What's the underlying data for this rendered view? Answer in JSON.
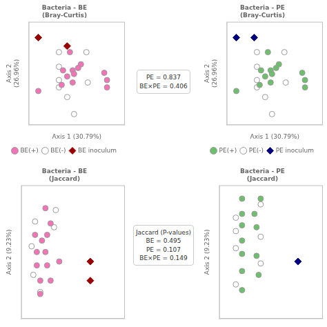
{
  "chart_data": [
    {
      "type": "scatter",
      "title": "Bacteria - BE\n(Bray-Curtis)",
      "xlabel": "Axis 1 (30.79%)",
      "ylabel": "Axis 2\n(26.96%)",
      "annotations": [
        "PE = 0.837\nBE×PE = 0.406"
      ],
      "xlim": [
        0,
        0.7
      ],
      "ylim": [
        0.15,
        1.0
      ],
      "tick_labels": false,
      "grid": false,
      "legend": "bottom",
      "series": [
        {
          "name": "BE(+)",
          "color": "#F472B6",
          "marker": "circle",
          "x": [
            0.3,
            0.38,
            0.25,
            0.32,
            0.36,
            0.28,
            0.33,
            0.24,
            0.32,
            0.07,
            0.55,
            0.57,
            0.57
          ],
          "values": [
            0.75,
            0.65,
            0.6,
            0.6,
            0.62,
            0.55,
            0.57,
            0.48,
            0.5,
            0.43,
            0.58,
            0.52,
            0.46
          ]
        },
        {
          "name": "BE(-)",
          "color": "#ffffff",
          "marker": "circle",
          "x": [
            0.22,
            0.42,
            0.22,
            0.22,
            0.22,
            0.43,
            0.28,
            0.33
          ],
          "values": [
            0.75,
            0.75,
            0.63,
            0.52,
            0.46,
            0.5,
            0.38,
            0.24
          ]
        },
        {
          "name": "BE inoculum",
          "color": "#990000",
          "marker": "diamond",
          "x": [
            0.07,
            0.28
          ],
          "values": [
            0.87,
            0.8
          ]
        }
      ]
    },
    {
      "type": "scatter",
      "title": "Bacteria - PE\n(Bray-Curtis)",
      "xlabel": "Axis 1 (30.79%)",
      "ylabel": "Axis 2\n(26.96%)",
      "xlim": [
        0,
        0.7
      ],
      "ylim": [
        0.15,
        1.0
      ],
      "tick_labels": false,
      "grid": false,
      "legend": "bottom",
      "series": [
        {
          "name": "PE(+)",
          "color": "#6DBF6D",
          "marker": "circle",
          "x": [
            0.3,
            0.38,
            0.25,
            0.32,
            0.36,
            0.28,
            0.33,
            0.24,
            0.32,
            0.07,
            0.55,
            0.57,
            0.57
          ],
          "values": [
            0.75,
            0.65,
            0.6,
            0.6,
            0.62,
            0.55,
            0.57,
            0.48,
            0.5,
            0.43,
            0.58,
            0.52,
            0.46
          ]
        },
        {
          "name": "PE(-)",
          "color": "#ffffff",
          "marker": "circle",
          "x": [
            0.22,
            0.42,
            0.22,
            0.22,
            0.22,
            0.43,
            0.28,
            0.33
          ],
          "values": [
            0.75,
            0.75,
            0.63,
            0.52,
            0.46,
            0.5,
            0.38,
            0.24
          ]
        },
        {
          "name": "PE inoculum",
          "color": "#000080",
          "marker": "diamond",
          "x": [
            0.07,
            0.2
          ],
          "values": [
            0.87,
            0.87
          ]
        }
      ]
    },
    {
      "type": "scatter",
      "title": "Bacteria - BE\n(Jaccard)",
      "ylabel": "Axis 2 (9.23%)",
      "annotations": [
        "Jaccard (P-values)\nBE = 0.495\nPE = 0.107\nBE×PE = 0.149"
      ],
      "xlim": [
        0,
        0.6
      ],
      "ylim": [
        0.3,
        1.0
      ],
      "tick_labels": false,
      "grid": false,
      "legend": false,
      "series": [
        {
          "name": "BE(+)",
          "color": "#F472B6",
          "marker": "circle",
          "x": [
            0.14,
            0.17,
            0.08,
            0.15,
            0.12,
            0.09,
            0.14,
            0.09,
            0.15,
            0.11,
            0.17,
            0.11,
            0.22
          ],
          "values": [
            0.88,
            0.8,
            0.74,
            0.74,
            0.71,
            0.65,
            0.65,
            0.58,
            0.58,
            0.5,
            0.5,
            0.43,
            0.6
          ]
        },
        {
          "name": "BE(-)",
          "color": "#ffffff",
          "marker": "circle",
          "x": [
            0.2,
            0.08,
            0.19,
            0.06,
            0.07,
            0.11
          ],
          "values": [
            0.87,
            0.81,
            0.78,
            0.68,
            0.53,
            0.44
          ]
        },
        {
          "name": "BE inoculum",
          "color": "#990000",
          "marker": "diamond",
          "x": [
            0.4,
            0.4
          ],
          "values": [
            0.6,
            0.5
          ]
        }
      ]
    },
    {
      "type": "scatter",
      "title": "Bacteria - PE\n(Jaccard)",
      "ylabel": "Axis 2 (9.23%)",
      "xlim": [
        0.5,
        1.0
      ],
      "ylim": [
        0.3,
        1.0
      ],
      "tick_labels": false,
      "grid": false,
      "legend": false,
      "series": [
        {
          "name": "PE(+)",
          "color": "#6DBF6D",
          "marker": "circle",
          "x": [
            0.61,
            0.7,
            0.61,
            0.67,
            0.61,
            0.68,
            0.61,
            0.61,
            0.68,
            0.61,
            0.69,
            0.61
          ],
          "values": [
            0.93,
            0.93,
            0.85,
            0.85,
            0.79,
            0.78,
            0.71,
            0.64,
            0.63,
            0.55,
            0.53,
            0.45
          ]
        },
        {
          "name": "PE(-)",
          "color": "#ffffff",
          "marker": "circle",
          "x": [
            0.7,
            0.58,
            0.58,
            0.7,
            0.58,
            0.7,
            0.58
          ],
          "values": [
            0.9,
            0.83,
            0.76,
            0.73,
            0.67,
            0.59,
            0.48
          ]
        },
        {
          "name": "PE inoculum",
          "color": "#000080",
          "marker": "diamond",
          "x": [
            0.88
          ],
          "values": [
            0.6
          ]
        }
      ]
    }
  ]
}
